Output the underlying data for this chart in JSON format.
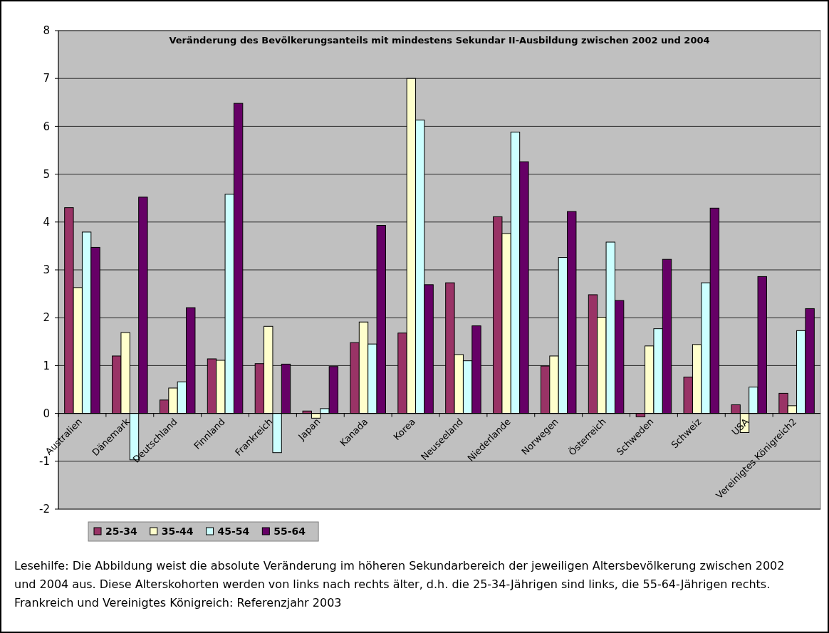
{
  "chart_data": {
    "type": "bar",
    "title": "Veränderung des Bevölkerungsanteils mit mindestens Sekundar II-Ausbildung zwischen 2002 und 2004",
    "categories": [
      "Australien",
      "Dänemark",
      "Deutschland",
      "Finnland",
      "Frankreich",
      "Japan",
      "Kanada",
      "Korea",
      "Neuseeland",
      "Niederlande",
      "Norwegen",
      "Österreich",
      "Schweden",
      "Schweiz",
      "USA",
      "Vereinigtes Königreich2"
    ],
    "series": [
      {
        "name": "25-34",
        "color": "#993366",
        "values": [
          4.3,
          1.2,
          0.28,
          1.14,
          1.04,
          0.05,
          1.48,
          1.68,
          2.73,
          4.11,
          0.99,
          2.48,
          -0.07,
          0.76,
          0.18,
          0.42
        ]
      },
      {
        "name": "35-44",
        "color": "#ffffcc",
        "values": [
          2.63,
          1.69,
          0.53,
          1.11,
          1.82,
          -0.1,
          1.91,
          7.0,
          1.23,
          3.76,
          1.2,
          2.01,
          1.41,
          1.44,
          -0.4,
          0.16
        ]
      },
      {
        "name": "45-54",
        "color": "#ccffff",
        "values": [
          3.79,
          -0.97,
          0.66,
          4.58,
          -0.82,
          0.1,
          1.45,
          6.13,
          1.1,
          5.88,
          3.26,
          3.58,
          1.77,
          2.73,
          0.55,
          1.73
        ]
      },
      {
        "name": "55-64",
        "color": "#660066",
        "values": [
          3.47,
          4.52,
          2.21,
          6.48,
          1.03,
          0.98,
          3.93,
          2.69,
          1.83,
          5.26,
          4.22,
          2.36,
          3.22,
          4.29,
          2.86,
          2.19
        ]
      }
    ],
    "ylim": [
      -2,
      8
    ],
    "yticks": [
      -2,
      -1,
      0,
      1,
      2,
      3,
      4,
      5,
      6,
      7,
      8
    ],
    "grid": "y",
    "legend": "bottom left",
    "annotations": [
      "Lesehilfe: Die Abbildung weist die absolute Veränderung im höheren Sekundarbereich der jeweiligen Altersbevölkerung zwischen 2002 und 2004 aus. Diese Alterskohorten werden von links nach rechts älter, d.h. die 25-34-Jährigen sind links, die 55-64-Jährigen rechts. Frankreich und Vereinigtes Königreich: Referenzjahr 2003"
    ]
  }
}
